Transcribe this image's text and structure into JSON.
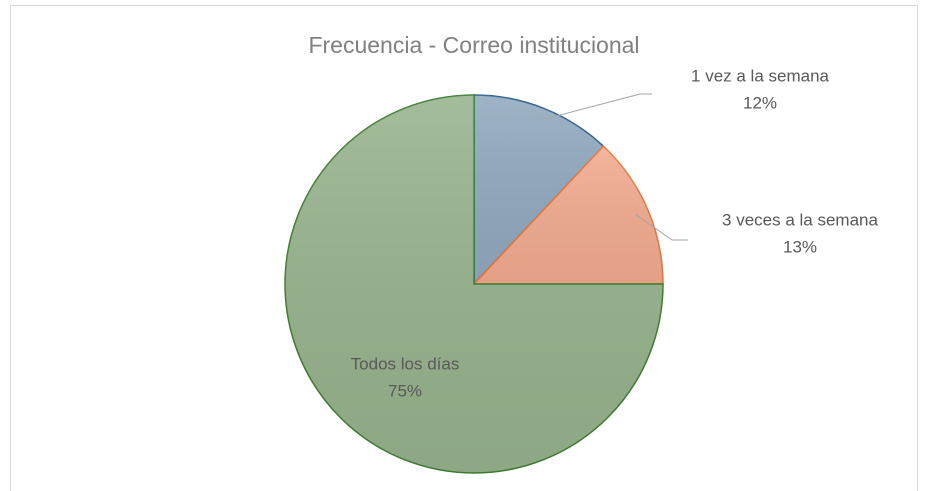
{
  "chart_data": {
    "type": "pie",
    "title": "Frecuencia - Correo institucional",
    "categories": [
      "1 vez a la semana",
      "3 veces a la semana",
      "Todos los días"
    ],
    "values": [
      12,
      13,
      75
    ],
    "value_labels": [
      "12%",
      "13%",
      "75%"
    ],
    "colors": [
      "#91a9bf",
      "#f3ab8f",
      "#97b38d"
    ],
    "stroke_colors": [
      "#2f5f8c",
      "#e8773d",
      "#3f7d30"
    ]
  }
}
